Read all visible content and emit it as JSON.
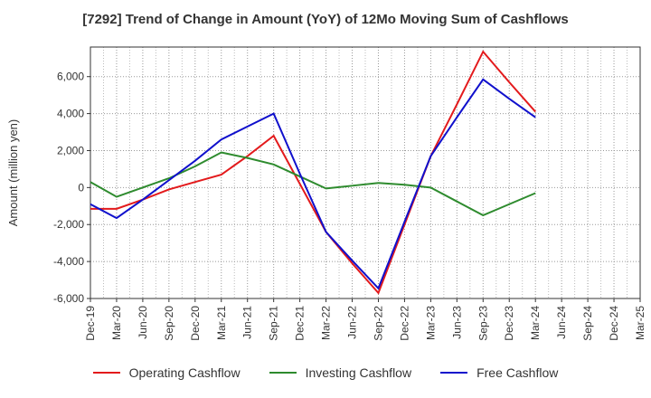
{
  "chart_data": {
    "type": "line",
    "title": "[7292]  Trend of Change in Amount (YoY) of 12Mo Moving Sum of Cashflows",
    "xlabel": "",
    "ylabel": "Amount (million yen)",
    "ylim": [
      -6000,
      7600
    ],
    "yticks": [
      -6000,
      -4000,
      -2000,
      0,
      2000,
      4000,
      6000
    ],
    "ytick_labels": [
      "-6,000",
      "-4,000",
      "-2,000",
      "0",
      "2,000",
      "4,000",
      "6,000"
    ],
    "grid": true,
    "legend_position": "bottom",
    "categories": [
      "Dec-19",
      "Mar-20",
      "Jun-20",
      "Sep-20",
      "Dec-20",
      "Mar-21",
      "Jun-21",
      "Sep-21",
      "Dec-21",
      "Mar-22",
      "Jun-22",
      "Sep-22",
      "Dec-22",
      "Mar-23",
      "Jun-23",
      "Sep-23",
      "Dec-23",
      "Mar-24",
      "Jun-24",
      "Sep-24",
      "Dec-24",
      "Mar-25"
    ],
    "series": [
      {
        "name": "Operating Cashflow",
        "color": "#e31a1c",
        "values": [
          -1150,
          -1150,
          -650,
          -100,
          300,
          700,
          1700,
          2800,
          200,
          -2400,
          -4100,
          -5700,
          -2000,
          1700,
          4500,
          7350,
          5700,
          4100,
          null,
          null,
          null,
          null
        ]
      },
      {
        "name": "Investing Cashflow",
        "color": "#2e8b2e",
        "values": [
          300,
          -500,
          0,
          500,
          1150,
          1900,
          1600,
          1250,
          600,
          -50,
          100,
          250,
          150,
          0,
          -750,
          -1500,
          -900,
          -300,
          null,
          null,
          null,
          null
        ]
      },
      {
        "name": "Free Cashflow",
        "color": "#1010cc",
        "values": [
          -900,
          -1650,
          -650,
          400,
          1450,
          2600,
          3300,
          4000,
          750,
          -2400,
          -3950,
          -5450,
          -1850,
          1700,
          3800,
          5850,
          4800,
          3800,
          null,
          null,
          null,
          null
        ]
      }
    ]
  }
}
